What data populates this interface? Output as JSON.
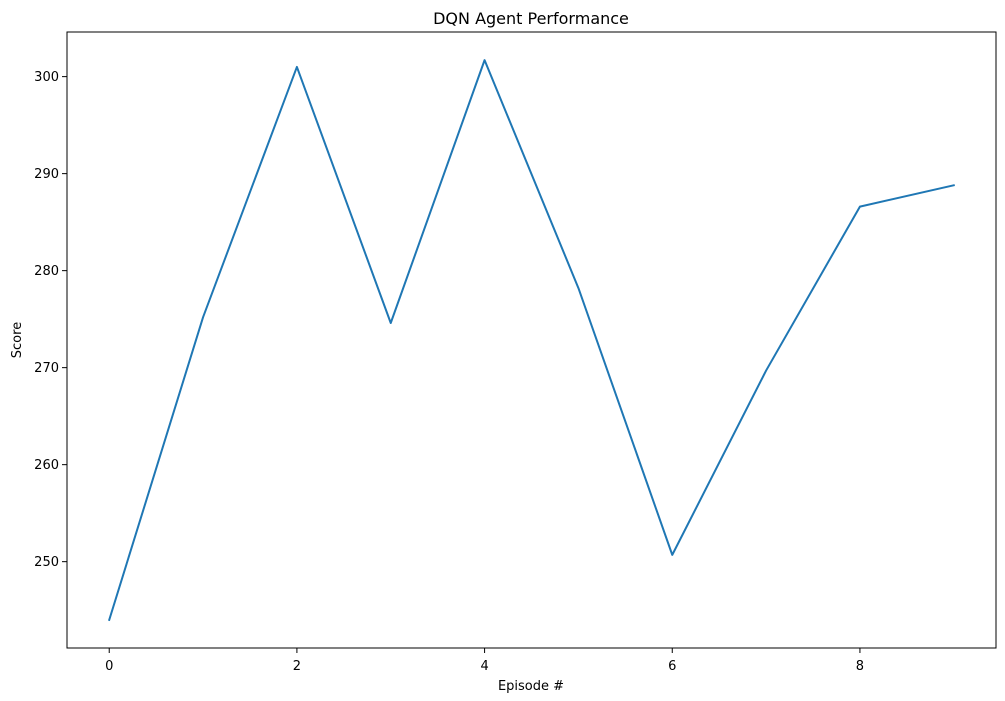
{
  "chart_data": {
    "type": "line",
    "title": "DQN Agent Performance",
    "xlabel": "Episode #",
    "ylabel": "Score",
    "x": [
      0,
      1,
      2,
      3,
      4,
      5,
      6,
      7,
      8,
      9
    ],
    "series": [
      {
        "values": [
          244.0,
          275.2,
          301.0,
          274.6,
          301.7,
          278.2,
          250.7,
          269.7,
          286.6,
          288.8
        ],
        "color": "#1f77b4"
      }
    ],
    "xticks": [
      "0",
      "2",
      "4",
      "6",
      "8"
    ],
    "yticks": [
      "250",
      "260",
      "270",
      "280",
      "290",
      "300"
    ],
    "xlim": [
      -0.45,
      9.45
    ],
    "ylim": [
      241.1,
      304.6
    ],
    "grid": false,
    "legend": false
  }
}
